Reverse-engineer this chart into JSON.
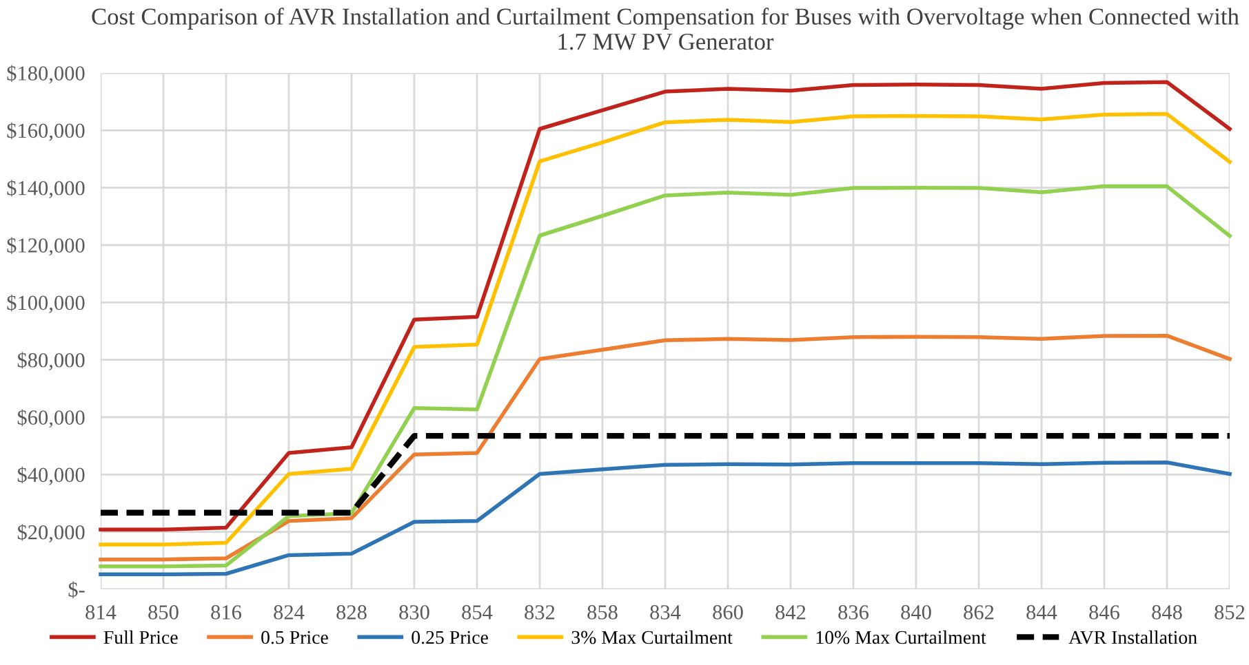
{
  "chart_data": {
    "type": "line",
    "title": "Cost Comparison of AVR Installation and Curtailment Compensation for Buses with Overvoltage when Connected with 1.7 MW PV Generator",
    "categories": [
      "814",
      "850",
      "816",
      "824",
      "828",
      "830",
      "854",
      "832",
      "858",
      "834",
      "860",
      "842",
      "836",
      "840",
      "862",
      "844",
      "846",
      "848",
      "852"
    ],
    "series": [
      {
        "name": "Full Price",
        "color": "#c0231c",
        "values": [
          20800,
          20800,
          21500,
          47500,
          49500,
          94000,
          95000,
          160500,
          167000,
          173500,
          174500,
          173800,
          175800,
          176000,
          175800,
          174500,
          176500,
          176800,
          160500
        ]
      },
      {
        "name": "0.5 Price",
        "color": "#ed7d31",
        "values": [
          10400,
          10400,
          10800,
          23800,
          24800,
          47000,
          47500,
          80300,
          83500,
          86800,
          87300,
          86900,
          87900,
          88000,
          87900,
          87300,
          88300,
          88400,
          80300
        ]
      },
      {
        "name": "0.25 Price",
        "color": "#2e75b6",
        "values": [
          5200,
          5200,
          5400,
          11900,
          12400,
          23500,
          23800,
          40200,
          41800,
          43400,
          43600,
          43500,
          44000,
          44000,
          44000,
          43600,
          44100,
          44200,
          40200
        ]
      },
      {
        "name": "3% Max Curtailment",
        "color": "#ffc000",
        "values": [
          15600,
          15600,
          16200,
          40200,
          42000,
          84500,
          85300,
          149200,
          155800,
          162800,
          163700,
          162900,
          164900,
          165000,
          164900,
          163800,
          165500,
          165700,
          149000
        ]
      },
      {
        "name": "10% Max Curtailment",
        "color": "#92d050",
        "values": [
          8000,
          8000,
          8300,
          25500,
          26500,
          63200,
          62700,
          123300,
          130200,
          137300,
          138300,
          137500,
          139900,
          140000,
          139900,
          138400,
          140500,
          140500,
          123200
        ]
      },
      {
        "name": "AVR Installation",
        "color": "#000000",
        "line_style": "dashed",
        "values": [
          26700,
          26700,
          26700,
          26700,
          26700,
          53500,
          53500,
          53500,
          53500,
          53500,
          53500,
          53500,
          53500,
          53500,
          53500,
          53500,
          53500,
          53500,
          53500
        ]
      }
    ],
    "ylim": [
      0,
      180000
    ],
    "yticks": [
      {
        "value": 0,
        "label": "$-"
      },
      {
        "value": 20000,
        "label": "$20,000"
      },
      {
        "value": 40000,
        "label": "$40,000"
      },
      {
        "value": 60000,
        "label": "$60,000"
      },
      {
        "value": 80000,
        "label": "$80,000"
      },
      {
        "value": 100000,
        "label": "$100,000"
      },
      {
        "value": 120000,
        "label": "$120,000"
      },
      {
        "value": 140000,
        "label": "$140,000"
      },
      {
        "value": 160000,
        "label": "$160,000"
      },
      {
        "value": 180000,
        "label": "$180,000"
      }
    ],
    "grid": true,
    "legend": "bottom",
    "line_style": "solid",
    "marker": "none"
  }
}
